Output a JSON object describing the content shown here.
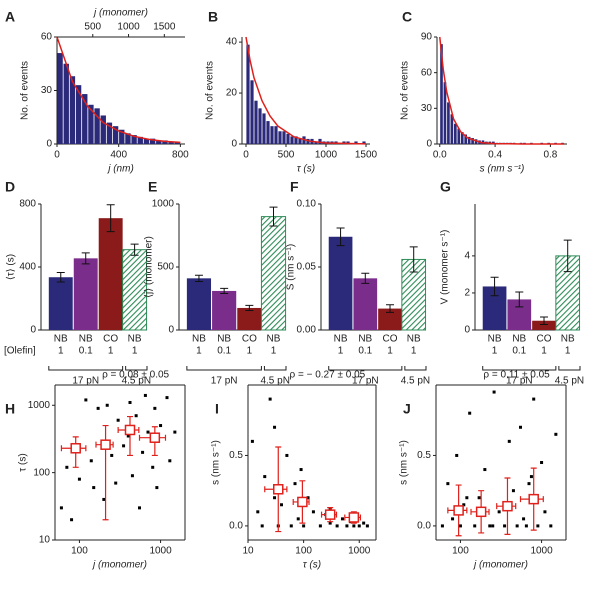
{
  "chart_data": [
    {
      "type": "histogram",
      "label": "A",
      "xlabel": "j (nm)",
      "ylabel": "No. of events",
      "x2label": "j (monomer)",
      "bins": [
        0,
        40,
        80,
        120,
        160,
        200,
        240,
        280,
        320,
        360,
        400,
        440,
        480,
        520,
        560,
        600,
        640,
        680,
        720,
        760,
        800
      ],
      "counts": [
        51,
        45,
        38,
        33,
        28,
        22,
        20,
        16,
        12,
        10,
        8,
        6,
        5,
        4,
        3,
        3,
        2,
        2,
        1,
        1
      ],
      "color": "#2b2a7a",
      "fit": {
        "color": "#e0201b",
        "x": [
          0,
          100,
          200,
          300,
          400,
          500,
          600,
          700,
          800
        ],
        "values": [
          60,
          35,
          21,
          12,
          7.3,
          4.3,
          2.5,
          1.5,
          0.9
        ]
      },
      "xlim": [
        0,
        830
      ],
      "xticks": [
        0,
        400,
        800
      ],
      "ylim": [
        0,
        60
      ],
      "yticks": [
        0,
        30,
        60
      ],
      "x2lim": [
        0,
        1789
      ],
      "x2ticks": [
        500,
        1000,
        1500
      ]
    },
    {
      "type": "histogram",
      "label": "B",
      "xlabel": "τ (s)",
      "ylabel": "No. of events",
      "bins": [
        0,
        50,
        100,
        150,
        200,
        250,
        300,
        350,
        400,
        450,
        500,
        550,
        600,
        650,
        700,
        750,
        800,
        850,
        900,
        950,
        1000,
        1050,
        1100,
        1150,
        1200,
        1250,
        1300,
        1350,
        1400,
        1450,
        1500
      ],
      "counts": [
        39,
        25,
        17,
        14,
        12,
        9,
        7,
        7,
        5,
        5,
        4,
        3,
        3,
        2,
        3,
        2,
        2,
        1,
        2,
        1,
        1,
        1,
        1,
        0,
        1,
        1,
        0,
        1,
        0,
        1
      ],
      "color": "#2b2a7a",
      "fit": {
        "color": "#e0201b",
        "x": [
          0,
          50,
          100,
          200,
          300,
          400,
          600,
          800,
          1000,
          1500
        ],
        "values": [
          42,
          33,
          26,
          17,
          11,
          7,
          2.8,
          1.1,
          0.4,
          0.05
        ]
      },
      "xlim": [
        -50,
        1550
      ],
      "xticks": [
        0,
        500,
        1000,
        1500
      ],
      "ylim": [
        0,
        42
      ],
      "yticks": [
        0,
        20,
        40
      ]
    },
    {
      "type": "histogram",
      "label": "C",
      "xlabel": "s (nm s⁻¹)",
      "ylabel": "No. of events",
      "bins": [
        0,
        0.025,
        0.05,
        0.075,
        0.1,
        0.125,
        0.15,
        0.175,
        0.2,
        0.225,
        0.25,
        0.275,
        0.3,
        0.325,
        0.35,
        0.375,
        0.4,
        0.425,
        0.45,
        0.475,
        0.5,
        0.525,
        0.55,
        0.575,
        0.6,
        0.625,
        0.65,
        0.675,
        0.7,
        0.725,
        0.75,
        0.775,
        0.8,
        0.825,
        0.85,
        0.875,
        0.9
      ],
      "counts": [
        84,
        52,
        35,
        25,
        17,
        13,
        10,
        8,
        6,
        5,
        4,
        3,
        3,
        2,
        2,
        2,
        1,
        1,
        1,
        1,
        1,
        1,
        0,
        1,
        1,
        0,
        1,
        0,
        0,
        1,
        0,
        1,
        0,
        1,
        0,
        1
      ],
      "color": "#2b2a7a",
      "fit": {
        "color": "#e0201b",
        "x": [
          0,
          0.025,
          0.05,
          0.1,
          0.15,
          0.2,
          0.3,
          0.4,
          0.6,
          0.9
        ],
        "values": [
          90,
          63,
          44,
          21,
          10.5,
          5.2,
          1.2,
          0.3,
          0.02,
          0
        ]
      },
      "xlim": [
        -0.02,
        0.92
      ],
      "xticks": [
        {
          "value": 0,
          "label": "0.0"
        },
        0.4,
        0.8
      ],
      "ylim": [
        0,
        90
      ],
      "yticks": [
        0,
        30,
        60,
        90
      ]
    },
    {
      "type": "bar",
      "label": "D",
      "ylabel": "⟨τ⟩ (s)",
      "row_label": "[Olefin]",
      "categories": [
        "NB",
        "NB",
        "CO",
        "NB"
      ],
      "olefin": [
        1,
        0.1,
        1,
        1
      ],
      "groups": [
        "17 pN",
        "4.5 pN"
      ],
      "values": [
        335,
        455,
        710,
        510
      ],
      "errors": [
        30,
        35,
        85,
        35
      ],
      "colors": [
        "#2b2a7a",
        "#7b2d8b",
        "#8b1a1a",
        "#2e8b57"
      ],
      "hatch": [
        false,
        false,
        false,
        true
      ],
      "ylim": [
        0,
        800
      ],
      "yticks": [
        0,
        400,
        800
      ]
    },
    {
      "type": "bar",
      "label": "E",
      "ylabel": "⟨j⟩ (monomer)",
      "categories": [
        "NB",
        "NB",
        "CO",
        "NB"
      ],
      "olefin": [
        1,
        0.1,
        1,
        1
      ],
      "groups": [
        "17 pN",
        "4.5 pN"
      ],
      "values": [
        410,
        310,
        175,
        900
      ],
      "errors": [
        25,
        20,
        20,
        75
      ],
      "colors": [
        "#2b2a7a",
        "#7b2d8b",
        "#8b1a1a",
        "#2e8b57"
      ],
      "hatch": [
        false,
        false,
        false,
        true
      ],
      "ylim": [
        0,
        1000
      ],
      "yticks": [
        0,
        500,
        1000
      ]
    },
    {
      "type": "bar",
      "label": "F",
      "ylabel": "S (nm s⁻¹)",
      "categories": [
        "NB",
        "NB",
        "CO",
        "NB"
      ],
      "olefin": [
        1,
        0.1,
        1,
        1
      ],
      "groups": [
        "17 pN",
        "4.5 pN"
      ],
      "values": [
        0.074,
        0.041,
        0.017,
        0.056
      ],
      "errors": [
        0.007,
        0.004,
        0.003,
        0.01
      ],
      "colors": [
        "#2b2a7a",
        "#7b2d8b",
        "#8b1a1a",
        "#2e8b57"
      ],
      "hatch": [
        false,
        false,
        false,
        true
      ],
      "ylim": [
        0,
        0.1
      ],
      "yticks": [
        {
          "value": 0,
          "label": "0.00"
        },
        {
          "value": 0.05,
          "label": "0.05"
        },
        {
          "value": 0.1,
          "label": "0.10"
        }
      ]
    },
    {
      "type": "bar",
      "label": "G",
      "ylabel": "V (monomer s⁻¹)",
      "categories": [
        "NB",
        "NB",
        "CO",
        "NB"
      ],
      "olefin": [
        1,
        0.1,
        1,
        1
      ],
      "groups": [
        "17 pN",
        "4.5 pN"
      ],
      "values": [
        2.35,
        1.65,
        0.5,
        4.0
      ],
      "errors": [
        0.5,
        0.4,
        0.2,
        0.85
      ],
      "colors": [
        "#2b2a7a",
        "#7b2d8b",
        "#8b1a1a",
        "#2e8b57"
      ],
      "hatch": [
        false,
        false,
        false,
        true
      ],
      "ylim": [
        0,
        6.8
      ],
      "yticks": [
        0,
        2,
        4
      ]
    },
    {
      "type": "scatter",
      "label": "H",
      "xlabel": "j (monomer)",
      "ylabel": "τ (s)",
      "annotation": "ρ = 0.08 ± 0.05",
      "xlog": true,
      "ylog": true,
      "xlim": [
        50,
        2000
      ],
      "ylim": [
        10,
        2000
      ],
      "xticks": [
        100,
        1000
      ],
      "yticks": [
        10,
        100,
        1000
      ],
      "points": {
        "color": "#000000",
        "x": [
          60,
          70,
          80,
          90,
          100,
          120,
          140,
          150,
          170,
          200,
          220,
          250,
          280,
          300,
          350,
          400,
          420,
          450,
          500,
          550,
          600,
          650,
          700,
          800,
          850,
          900,
          1000,
          1200,
          1300,
          1500
        ],
        "y": [
          30,
          120,
          20,
          250,
          80,
          1200,
          150,
          60,
          900,
          40,
          1000,
          180,
          70,
          600,
          250,
          350,
          1100,
          90,
          700,
          30,
          200,
          1400,
          400,
          120,
          900,
          60,
          500,
          1300,
          150,
          400
        ]
      },
      "binned": {
        "color": "#e0201b",
        "x": [
          90,
          210,
          420,
          850
        ],
        "y": [
          230,
          260,
          430,
          330
        ],
        "xerr": [
          30,
          50,
          120,
          300
        ],
        "yerr": [
          110,
          240,
          250,
          150
        ]
      }
    },
    {
      "type": "scatter",
      "label": "I",
      "xlabel": "τ (s)",
      "ylabel": "s (nm s⁻¹)",
      "annotation": "ρ = − 0.27 ± 0.05",
      "xlog": true,
      "ylog": false,
      "xlim": [
        10,
        2000
      ],
      "ylim": [
        -0.1,
        1.0
      ],
      "xticks": [
        10,
        100,
        1000
      ],
      "yticks": [
        {
          "value": 0,
          "label": "0.0"
        },
        0.5
      ],
      "points": {
        "color": "#000000",
        "x": [
          12,
          15,
          18,
          20,
          25,
          30,
          35,
          40,
          50,
          60,
          70,
          80,
          100,
          120,
          150,
          200,
          250,
          300,
          400,
          500,
          600,
          700,
          800,
          900,
          1000,
          1200,
          1400,
          30,
          90,
          300
        ],
        "y": [
          0.6,
          0.1,
          0,
          0.35,
          0.9,
          0.2,
          0,
          0.15,
          0.5,
          0,
          0.3,
          0.05,
          0,
          0.2,
          0.1,
          0,
          0.08,
          0.02,
          0,
          0.05,
          0,
          0.03,
          0,
          0.06,
          0,
          0.02,
          0,
          0.7,
          0.4,
          0.12
        ]
      },
      "binned": {
        "color": "#e0201b",
        "x": [
          35,
          95,
          300,
          800
        ],
        "y": [
          0.26,
          0.17,
          0.08,
          0.06
        ],
        "xerr": [
          15,
          30,
          90,
          250
        ],
        "yerr": [
          0.3,
          0.15,
          0.05,
          0.04
        ]
      }
    },
    {
      "type": "scatter",
      "label": "J",
      "xlabel": "j (monomer)",
      "ylabel": "s (nm s⁻¹)",
      "annotation": "ρ = 0.11 ± 0.05",
      "xlog": true,
      "ylog": false,
      "xlim": [
        50,
        2000
      ],
      "ylim": [
        -0.1,
        1.0
      ],
      "xticks": [
        100,
        1000
      ],
      "yticks": [
        {
          "value": 0,
          "label": "0.0"
        },
        0.5
      ],
      "points": {
        "color": "#000000",
        "x": [
          60,
          70,
          80,
          90,
          100,
          110,
          130,
          150,
          170,
          200,
          230,
          260,
          300,
          350,
          400,
          450,
          500,
          550,
          600,
          650,
          700,
          800,
          900,
          1000,
          1100,
          1300,
          1500,
          120,
          250,
          750
        ],
        "y": [
          0,
          0.3,
          0.05,
          0.5,
          0,
          0.15,
          0.8,
          0,
          0.2,
          0.4,
          0,
          0.95,
          0.1,
          0,
          0.6,
          0.25,
          0,
          0.7,
          0.05,
          0,
          0.3,
          0.9,
          0,
          0.45,
          0.1,
          0,
          0.65,
          0.2,
          0,
          0.35
        ]
      },
      "binned": {
        "color": "#e0201b",
        "x": [
          95,
          180,
          380,
          800
        ],
        "y": [
          0.11,
          0.1,
          0.14,
          0.19
        ],
        "xerr": [
          25,
          45,
          100,
          250
        ],
        "yerr": [
          0.18,
          0.15,
          0.2,
          0.22
        ]
      }
    }
  ]
}
